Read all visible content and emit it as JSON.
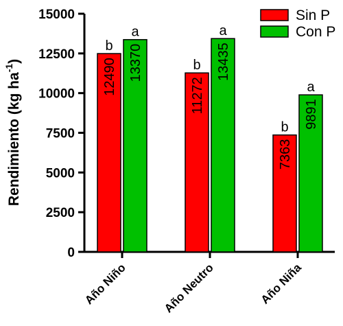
{
  "chart_data": {
    "type": "bar",
    "categories": [
      "Año Niño",
      "Año Neutro",
      "Año Niña"
    ],
    "series": [
      {
        "name": "Sin P",
        "color": "#ff0000",
        "values": [
          12490,
          11272,
          7363
        ],
        "letters": [
          "b",
          "b",
          "b"
        ]
      },
      {
        "name": "Con P",
        "color": "#00c000",
        "values": [
          13370,
          13435,
          9891
        ],
        "letters": [
          "a",
          "a",
          "a"
        ]
      }
    ],
    "ylabel": {
      "main": "Rendimiento (kg ha",
      "sup": "-1",
      "end": ")"
    },
    "xlabel": "",
    "ylim": [
      0,
      15000
    ],
    "yticks": [
      0,
      2500,
      5000,
      7500,
      10000,
      12500,
      15000
    ],
    "grid": false,
    "legend_position": "top-right"
  }
}
